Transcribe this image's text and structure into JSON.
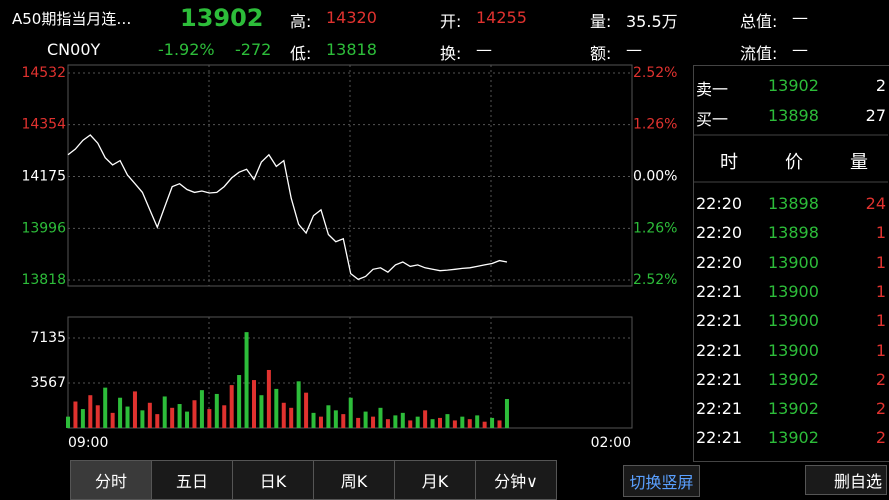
{
  "header": {
    "name": "A50期指当月连…",
    "code": "CN00Y",
    "price": "13902",
    "change_pct": "-1.92%",
    "change": "-272",
    "fields": [
      {
        "label": "高:",
        "value": "14320",
        "color": "#e0322f"
      },
      {
        "label": "低:",
        "value": "13818",
        "color": "#2dbd3a"
      },
      {
        "label": "开:",
        "value": "14255",
        "color": "#e0322f"
      },
      {
        "label": "换:",
        "value": "—",
        "color": "#ffffff"
      },
      {
        "label": "量:",
        "value": "35.5万",
        "color": "#ffffff"
      },
      {
        "label": "额:",
        "value": "—",
        "color": "#ffffff"
      },
      {
        "label": "总值:",
        "value": "—",
        "color": "#ffffff"
      },
      {
        "label": "流值:",
        "value": "—",
        "color": "#ffffff"
      }
    ]
  },
  "price_chart": {
    "type": "line",
    "color": "#ffffff",
    "ylim": [
      13818,
      14532
    ],
    "yticks": [
      14532,
      14354,
      14175,
      13996,
      13818
    ],
    "ytick_colors": [
      "#e0322f",
      "#e0322f",
      "#ffffff",
      "#2dbd3a",
      "#2dbd3a"
    ],
    "y2ticks": [
      "2.52%",
      "1.26%",
      "0.00%",
      "1.26%",
      "2.52%"
    ],
    "x_labels": [
      "09:00",
      "02:00"
    ],
    "values": [
      14250,
      14270,
      14300,
      14318,
      14290,
      14240,
      14215,
      14230,
      14180,
      14150,
      14120,
      14060,
      14000,
      14070,
      14140,
      14150,
      14130,
      14120,
      14125,
      14118,
      14120,
      14140,
      14170,
      14190,
      14200,
      14165,
      14225,
      14250,
      14210,
      14230,
      14100,
      14010,
      13980,
      14040,
      14060,
      13975,
      13950,
      13960,
      13840,
      13820,
      13830,
      13855,
      13860,
      13845,
      13870,
      13880,
      13865,
      13870,
      13860,
      13855,
      13850,
      13852,
      13855,
      13858,
      13860,
      13865,
      13870,
      13875,
      13885,
      13880
    ]
  },
  "volume_chart": {
    "type": "bar",
    "ylim": [
      0,
      8800
    ],
    "yticks": [
      7135,
      3567
    ],
    "values": [
      900,
      2100,
      1500,
      2600,
      1800,
      3200,
      1200,
      2400,
      1700,
      2900,
      1400,
      2000,
      1100,
      2500,
      1600,
      1900,
      1300,
      2200,
      3000,
      1500,
      2700,
      1800,
      3400,
      4200,
      7600,
      3800,
      2600,
      4600,
      3100,
      2000,
      1600,
      3700,
      2800,
      1200,
      900,
      1800,
      1400,
      1100,
      2400,
      800,
      1300,
      900,
      1600,
      700,
      1000,
      1200,
      600,
      900,
      1400,
      700,
      800,
      1100,
      600,
      900,
      700,
      1000,
      500,
      800,
      600,
      2300
    ],
    "colors": [
      "#2dbd3a",
      "#e0322f",
      "#2dbd3a",
      "#e0322f",
      "#e0322f",
      "#2dbd3a",
      "#e0322f",
      "#2dbd3a",
      "#2dbd3a",
      "#e0322f",
      "#2dbd3a",
      "#e0322f",
      "#e0322f",
      "#2dbd3a",
      "#e0322f",
      "#2dbd3a",
      "#2dbd3a",
      "#e0322f",
      "#2dbd3a",
      "#e0322f",
      "#2dbd3a",
      "#e0322f",
      "#e0322f",
      "#2dbd3a",
      "#2dbd3a",
      "#e0322f",
      "#2dbd3a",
      "#e0322f",
      "#2dbd3a",
      "#e0322f",
      "#e0322f",
      "#2dbd3a",
      "#e0322f",
      "#2dbd3a",
      "#e0322f",
      "#2dbd3a",
      "#2dbd3a",
      "#e0322f",
      "#2dbd3a",
      "#e0322f",
      "#2dbd3a",
      "#e0322f",
      "#2dbd3a",
      "#e0322f",
      "#2dbd3a",
      "#2dbd3a",
      "#e0322f",
      "#2dbd3a",
      "#e0322f",
      "#2dbd3a",
      "#e0322f",
      "#2dbd3a",
      "#e0322f",
      "#2dbd3a",
      "#e0322f",
      "#2dbd3a",
      "#e0322f",
      "#2dbd3a",
      "#e0322f",
      "#2dbd3a"
    ]
  },
  "order_book": [
    {
      "label": "卖一",
      "price": "13902",
      "qty": "2"
    },
    {
      "label": "买一",
      "price": "13898",
      "qty": "27"
    }
  ],
  "trades_header": [
    "时",
    "价",
    "量"
  ],
  "trades": [
    {
      "time": "22:20",
      "price": "13898",
      "qty": "24",
      "color": "#e0322f"
    },
    {
      "time": "22:20",
      "price": "13898",
      "qty": "1",
      "color": "#e0322f"
    },
    {
      "time": "22:20",
      "price": "13900",
      "qty": "1",
      "color": "#e0322f"
    },
    {
      "time": "22:21",
      "price": "13900",
      "qty": "1",
      "color": "#e0322f"
    },
    {
      "time": "22:21",
      "price": "13900",
      "qty": "1",
      "color": "#e0322f"
    },
    {
      "time": "22:21",
      "price": "13900",
      "qty": "1",
      "color": "#e0322f"
    },
    {
      "time": "22:21",
      "price": "13902",
      "qty": "2",
      "color": "#e0322f"
    },
    {
      "time": "22:21",
      "price": "13902",
      "qty": "2",
      "color": "#e0322f"
    },
    {
      "time": "22:21",
      "price": "13902",
      "qty": "2",
      "color": "#e0322f"
    }
  ],
  "tabs": [
    "分时",
    "五日",
    "日K",
    "周K",
    "月K",
    "分钟∨"
  ],
  "buttons": {
    "rotate": "切换竖屏",
    "delete": "删自选"
  }
}
